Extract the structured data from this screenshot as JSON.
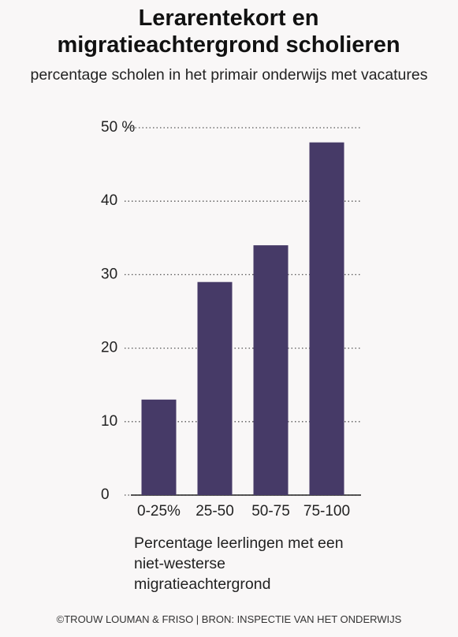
{
  "chart_data": {
    "type": "bar",
    "title": "Lerarentekort en migratieachtergrond scholieren",
    "subtitle": "percentage scholen in het primair onderwijs met vacatures",
    "x_label": "Percentage leerlingen met een niet-westerse migratieachtergrond",
    "source": "©TROUW LOUMAN & FRISO | BRON: INSPECTIE VAN HET ONDERWIJS",
    "categories": [
      "0-25%",
      "25-50",
      "50-75",
      "75-100"
    ],
    "values": [
      13,
      29,
      34,
      48
    ],
    "color": "#463a67",
    "ylim": [
      0,
      50
    ],
    "yticks": [
      0,
      10,
      20,
      30,
      40,
      {
        "value": 50,
        "label": "50 %"
      }
    ],
    "grid": true
  }
}
